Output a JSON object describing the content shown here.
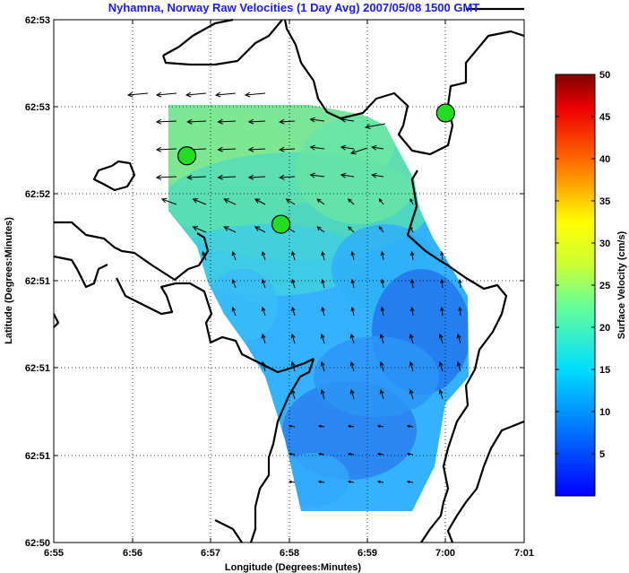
{
  "chart_data": {
    "type": "heatmap",
    "title": "Nyhamna, Norway Raw Velocities (1 Day Avg) 2007/05/08 1500 GMT",
    "xlabel": "Longitude (Degrees:Minutes)",
    "ylabel": "Latitude (Degrees:Minutes)",
    "x_ticks": [
      "6:55",
      "6:56",
      "6:57",
      "6:58",
      "6:59",
      "7:00",
      "7:01"
    ],
    "y_ticks": [
      "62:53",
      "62:53",
      "62:52",
      "62:51",
      "62:51",
      "62:51",
      "62:50"
    ],
    "grid": true,
    "colorbar": {
      "label": "Surface Velocity (cm/s)",
      "min": 0,
      "max": 50,
      "ticks": [
        5,
        10,
        15,
        20,
        25,
        30,
        35,
        40,
        45,
        50
      ],
      "colormap": "jet"
    },
    "sites": [
      {
        "x": 6.945,
        "y": 62.8785
      },
      {
        "x": 6.965,
        "y": 62.8705
      },
      {
        "x": 7.0,
        "y": 62.8835
      }
    ],
    "site_color": "#22dd22"
  }
}
